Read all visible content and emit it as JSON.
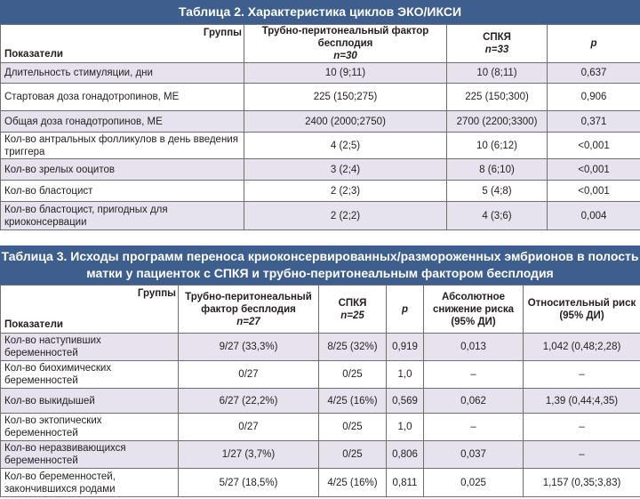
{
  "table2": {
    "title": "Таблица 2. Характеристика циклов ЭКО/ИКСИ",
    "groups_label": "Группы",
    "indicators_label": "Показатели",
    "col1_label": "Трубно-перитонеальный фактор бесплодия",
    "col1_n": "n=30",
    "col2_label": "СПКЯ",
    "col2_n": "n=33",
    "col3_label": "p",
    "rows": [
      {
        "label": "Длительность стимуляции, дни",
        "v1": "10 (9;11)",
        "v2": "10 (8;11)",
        "p": "0,637"
      },
      {
        "label": "Стартовая доза гонадотропинов, МЕ",
        "v1": "225 (150;275)",
        "v2": "225 (150;300)",
        "p": "0,906"
      },
      {
        "label": "Общая доза гонадотропинов, МЕ",
        "v1": "2400 (2000;2750)",
        "v2": "2700 (2200;3300)",
        "p": "0,371"
      },
      {
        "label": "Кол-во антральных фолликулов в день введения триггера",
        "v1": "4 (2;5)",
        "v2": "10 (6;12)",
        "p": "<0,001"
      },
      {
        "label": "Кол-во зрелых ооцитов",
        "v1": "3 (2;4)",
        "v2": "8 (6;10)",
        "p": "<0,001"
      },
      {
        "label": "Кол-во бластоцист",
        "v1": "2 (2;3)",
        "v2": "5 (4;8)",
        "p": "<0,001"
      },
      {
        "label": "Кол-во бластоцист, пригодных для криоконсервации",
        "v1": "2 (2;2)",
        "v2": "4 (3;6)",
        "p": "0,004"
      }
    ]
  },
  "table3": {
    "title": "Таблица 3. Исходы программ переноса криоконсервированных/размороженных эмбрионов в полость матки у пациенток с СПКЯ и трубно-перитонеальным фактором бесплодия",
    "groups_label": "Группы",
    "indicators_label": "Показатели",
    "col1_label": "Трубно-перитонеальный фактор бесплодия",
    "col1_n": "n=27",
    "col2_label": "СПКЯ",
    "col2_n": "n=25",
    "col3_label": "p",
    "col4_label": "Абсолютное снижение риска (95% ДИ)",
    "col5_label": "Относительный риск (95% ДИ)",
    "rows": [
      {
        "label": "Кол-во наступивших беременностей",
        "v1": "9/27 (33,3%)",
        "v2": "8/25 (32%)",
        "p": "0,919",
        "arr": "0,013",
        "rr": "1,042 (0,48;2,28)"
      },
      {
        "label": "Кол-во биохимических беременностей",
        "v1": "0/27",
        "v2": "0/25",
        "p": "1,0",
        "arr": "–",
        "rr": "–"
      },
      {
        "label": "Кол-во выкидышей",
        "v1": "6/27 (22,2%)",
        "v2": "4/25 (16%)",
        "p": "0,569",
        "arr": "0,062",
        "rr": "1,39 (0,44;4,35)"
      },
      {
        "label": "Кол-во эктопических беременностей",
        "v1": "0/27",
        "v2": "0/25",
        "p": "1,0",
        "arr": "–",
        "rr": "–"
      },
      {
        "label": "Кол-во неразвивающихся беременностей",
        "v1": "1/27 (3,7%)",
        "v2": "0/25",
        "p": "0,806",
        "arr": "0,037",
        "rr": "–"
      },
      {
        "label": "Кол-во беременностей, закончившихся родами",
        "v1": "5/27 (18,5%)",
        "v2": "4/25 (16%)",
        "p": "0,811",
        "arr": "0,025",
        "rr": "1,157 (0,35;3,83)"
      }
    ]
  }
}
